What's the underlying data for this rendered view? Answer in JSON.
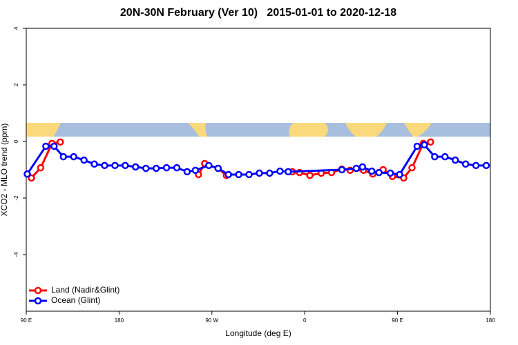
{
  "chart_data": {
    "type": "line",
    "title": "20N-30N February (Ver 10)   2015-01-01 to 2020-12-18",
    "xlabel": "Longitude (deg E)",
    "ylabel": "XCO2 - MLO trend (ppm)",
    "xlim": [
      90,
      540
    ],
    "xticks": [
      {
        "value": 90,
        "label": "90 E"
      },
      {
        "value": 180,
        "label": "180"
      },
      {
        "value": 270,
        "label": "90 W"
      },
      {
        "value": 360,
        "label": "0"
      },
      {
        "value": 450,
        "label": "90 E"
      },
      {
        "value": 540,
        "label": "180"
      }
    ],
    "ylim": [
      -6,
      4
    ],
    "yticks": [
      4,
      2,
      0,
      -2,
      -4
    ],
    "legend": "bottom-left",
    "series": [
      {
        "name": "Land (Nadir&Glint)",
        "color": "#ff0000",
        "x": [
          95,
          104,
          115,
          123,
          null,
          257,
          263,
          276,
          284,
          null,
          348,
          355,
          365,
          376,
          386,
          396,
          404,
          417,
          426,
          436,
          445,
          456,
          464,
          475,
          482
        ],
        "values": [
          -1.29,
          -0.93,
          -0.07,
          -0.02,
          null,
          -1.17,
          -0.78,
          -0.95,
          -1.2,
          null,
          -1.07,
          -1.1,
          -1.2,
          -1.12,
          -1.1,
          -0.98,
          -1.02,
          -1.02,
          -1.15,
          -1.0,
          -1.24,
          -1.29,
          -0.93,
          -0.07,
          -0.02
        ]
      },
      {
        "name": "Ocean (Glint)",
        "color": "#0000ff",
        "x": [
          91,
          109,
          117,
          126,
          136,
          146,
          156,
          166,
          176,
          186,
          196,
          206,
          216,
          226,
          236,
          246,
          254,
          267,
          276,
          286,
          296,
          306,
          316,
          326,
          336,
          344,
          396,
          410,
          416,
          425,
          432,
          443,
          452,
          469,
          476,
          486,
          496,
          506,
          516,
          526,
          536
        ],
        "values": [
          -1.15,
          -0.17,
          -0.17,
          -0.54,
          -0.54,
          -0.66,
          -0.8,
          -0.85,
          -0.85,
          -0.85,
          -0.9,
          -0.95,
          -0.95,
          -0.93,
          -0.93,
          -1.07,
          -1.02,
          -0.85,
          -0.95,
          -1.17,
          -1.17,
          -1.17,
          -1.12,
          -1.12,
          -1.05,
          -1.07,
          -1.0,
          -0.95,
          -0.9,
          -1.05,
          -1.1,
          -1.12,
          -1.17,
          -0.17,
          -0.12,
          -0.54,
          -0.54,
          -0.66,
          -0.8,
          -0.85,
          -0.85
        ]
      }
    ]
  }
}
